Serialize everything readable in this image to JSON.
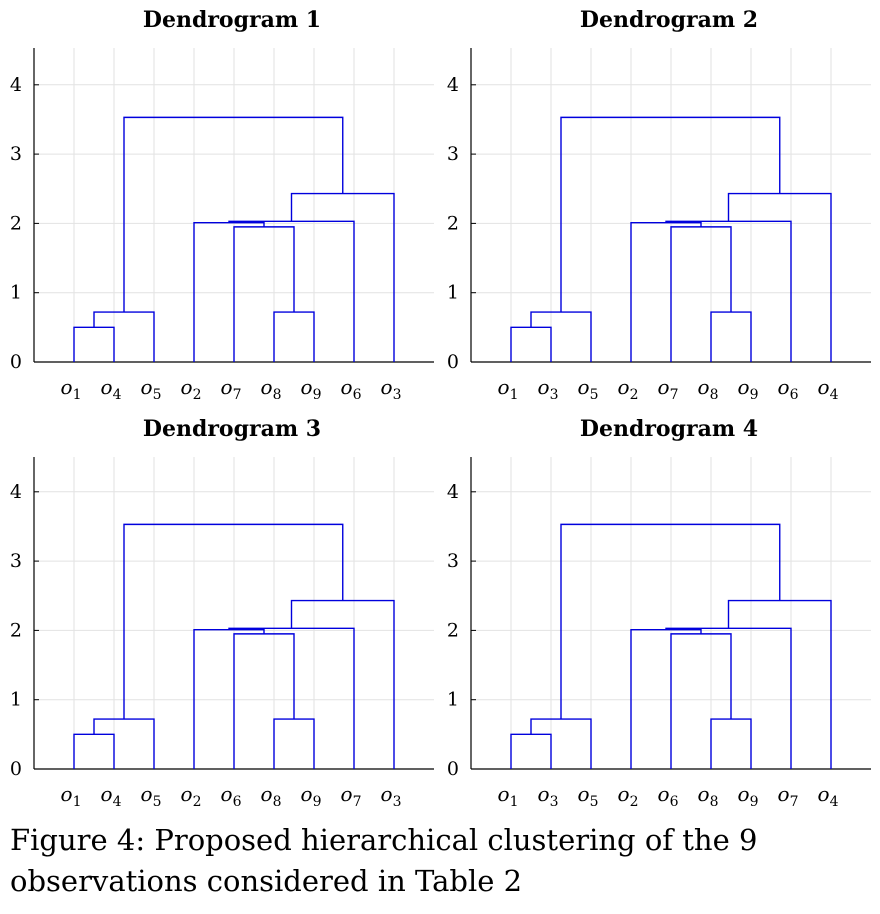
{
  "chart_data": [
    {
      "type": "dendrogram",
      "title": "Dendrogram 1",
      "ylim": [
        0,
        4.5
      ],
      "yticks": [
        0,
        1,
        2,
        3,
        4
      ],
      "grid": true,
      "leaves": [
        "1",
        "4",
        "5",
        "2",
        "7",
        "8",
        "9",
        "6",
        "3"
      ],
      "merges": [
        {
          "left": "o1",
          "right": "o4",
          "height": 0.5
        },
        {
          "left": "o8",
          "right": "o9",
          "height": 0.72
        },
        {
          "left": "{o1,o4}",
          "right": "o5",
          "height": 0.72
        },
        {
          "left": "o7",
          "right": "{o8,o9}",
          "height": 1.95
        },
        {
          "left": "o2",
          "right": "{o7,o8,o9}",
          "height": 2.01
        },
        {
          "left": "{o2,o7,o8,o9}",
          "right": "o6",
          "height": 2.03
        },
        {
          "left": "{o2,o7,o8,o9,o6}",
          "right": "o3",
          "height": 2.43
        },
        {
          "left": "{o1,o4,o5}",
          "right": "{o2,o7,o8,o9,o6,o3}",
          "height": 3.53
        }
      ]
    },
    {
      "type": "dendrogram",
      "title": "Dendrogram 2",
      "ylim": [
        0,
        4.5
      ],
      "yticks": [
        0,
        1,
        2,
        3,
        4
      ],
      "grid": true,
      "leaves": [
        "1",
        "3",
        "5",
        "2",
        "7",
        "8",
        "9",
        "6",
        "4"
      ],
      "merges": [
        {
          "left": "o1",
          "right": "o3",
          "height": 0.5
        },
        {
          "left": "o8",
          "right": "o9",
          "height": 0.72
        },
        {
          "left": "{o1,o3}",
          "right": "o5",
          "height": 0.72
        },
        {
          "left": "o7",
          "right": "{o8,o9}",
          "height": 1.95
        },
        {
          "left": "o2",
          "right": "{o7,o8,o9}",
          "height": 2.01
        },
        {
          "left": "{o2,o7,o8,o9}",
          "right": "o6",
          "height": 2.03
        },
        {
          "left": "{o2,o7,o8,o9,o6}",
          "right": "o4",
          "height": 2.43
        },
        {
          "left": "{o1,o3,o5}",
          "right": "{o2,o7,o8,o9,o6,o4}",
          "height": 3.53
        }
      ]
    },
    {
      "type": "dendrogram",
      "title": "Dendrogram 3",
      "ylim": [
        0,
        4.5
      ],
      "yticks": [
        0,
        1,
        2,
        3,
        4
      ],
      "grid": true,
      "leaves": [
        "1",
        "4",
        "5",
        "2",
        "6",
        "8",
        "9",
        "7",
        "3"
      ],
      "merges": [
        {
          "left": "o1",
          "right": "o4",
          "height": 0.5
        },
        {
          "left": "o8",
          "right": "o9",
          "height": 0.72
        },
        {
          "left": "{o1,o4}",
          "right": "o5",
          "height": 0.72
        },
        {
          "left": "o6",
          "right": "{o8,o9}",
          "height": 1.95
        },
        {
          "left": "o2",
          "right": "{o6,o8,o9}",
          "height": 2.01
        },
        {
          "left": "{o2,o6,o8,o9}",
          "right": "o7",
          "height": 2.03
        },
        {
          "left": "{o2,o6,o8,o9,o7}",
          "right": "o3",
          "height": 2.43
        },
        {
          "left": "{o1,o4,o5}",
          "right": "{o2,o6,o8,o9,o7,o3}",
          "height": 3.53
        }
      ]
    },
    {
      "type": "dendrogram",
      "title": "Dendrogram 4",
      "ylim": [
        0,
        4.5
      ],
      "yticks": [
        0,
        1,
        2,
        3,
        4
      ],
      "grid": true,
      "leaves": [
        "1",
        "3",
        "5",
        "2",
        "6",
        "8",
        "9",
        "7",
        "4"
      ],
      "merges": [
        {
          "left": "o1",
          "right": "o3",
          "height": 0.5
        },
        {
          "left": "o8",
          "right": "o9",
          "height": 0.72
        },
        {
          "left": "{o1,o3}",
          "right": "o5",
          "height": 0.72
        },
        {
          "left": "o6",
          "right": "{o8,o9}",
          "height": 1.95
        },
        {
          "left": "o2",
          "right": "{o6,o8,o9}",
          "height": 2.01
        },
        {
          "left": "{o2,o6,o8,o9}",
          "right": "o7",
          "height": 2.03
        },
        {
          "left": "{o2,o6,o8,o9,o7}",
          "right": "o4",
          "height": 2.43
        },
        {
          "left": "{o1,o3,o5}",
          "right": "{o2,o6,o8,o9,o7,o4}",
          "height": 3.53
        }
      ]
    }
  ],
  "caption": "Figure 4: Proposed hierarchical clustering of the 9 observations considered in Table 2",
  "colors": {
    "link": "#0000dd",
    "grid": "#e2e2e2",
    "axis": "#000000"
  }
}
